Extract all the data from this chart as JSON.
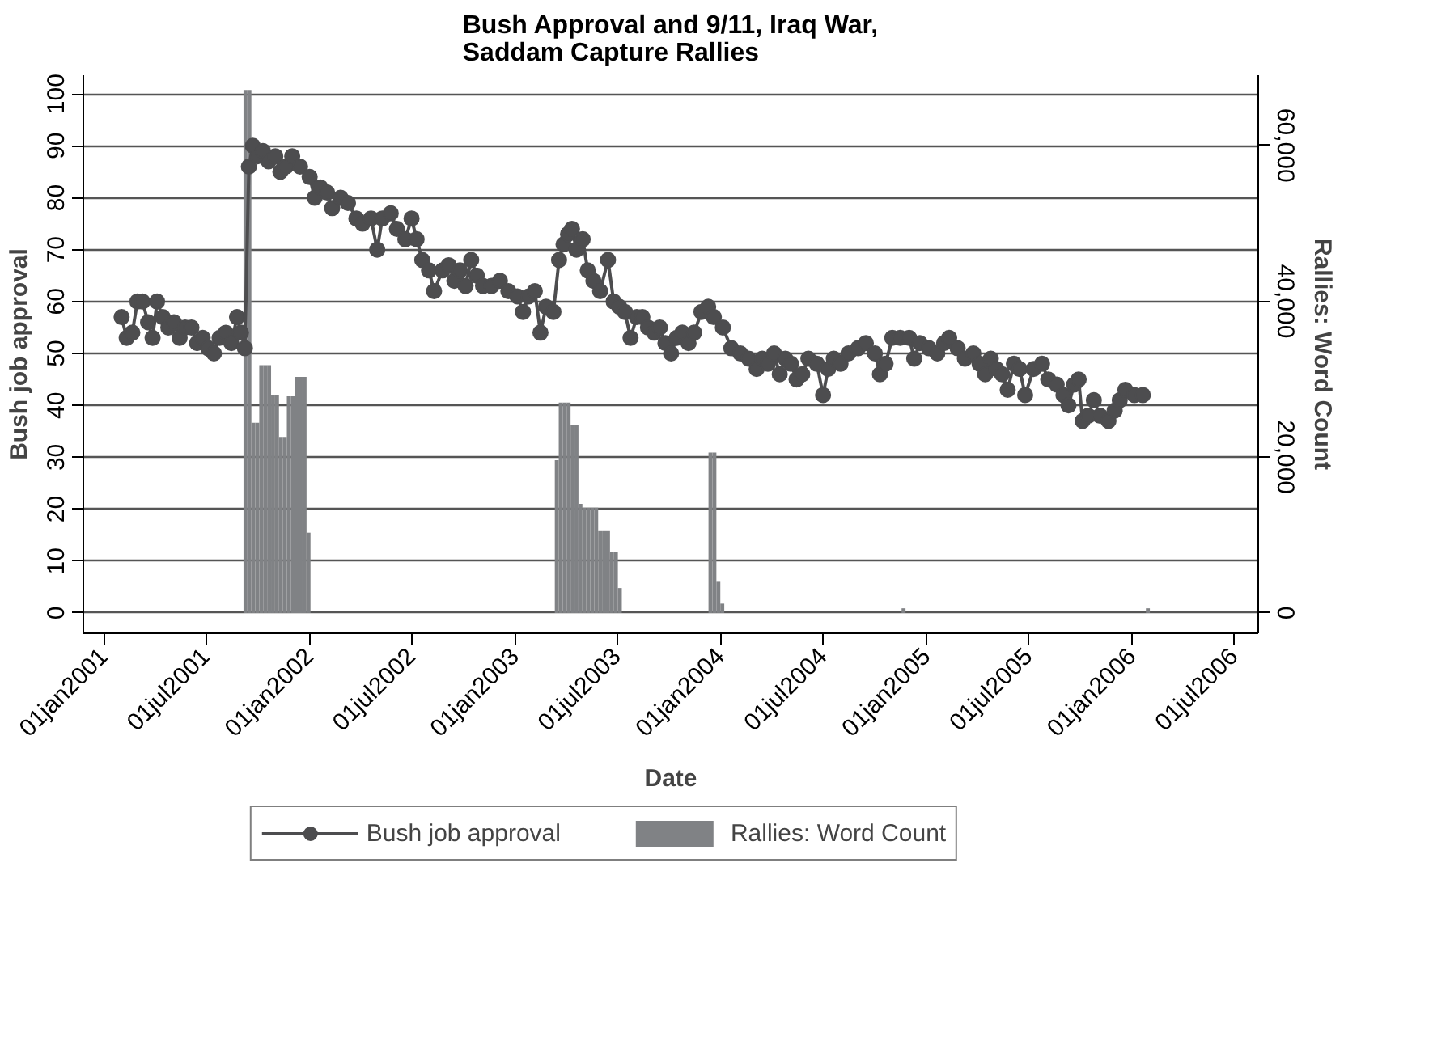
{
  "chart_data": {
    "type": "line",
    "title": "Bush Approval and 9/11, Iraq War,\nSaddam Capture Rallies",
    "xlabel": "Date",
    "ylabel": "Bush job approval",
    "y2label": "Rallies: Word Count",
    "xlim": [
      "2000-11-25",
      "2006-08-13"
    ],
    "xticks": [
      {
        "value": "2001-01-01",
        "label": "01jan2001"
      },
      {
        "value": "2001-07-01",
        "label": "01jul2001"
      },
      {
        "value": "2002-01-01",
        "label": "01jan2002"
      },
      {
        "value": "2002-07-01",
        "label": "01jul2002"
      },
      {
        "value": "2003-01-01",
        "label": "01jan2003"
      },
      {
        "value": "2003-07-01",
        "label": "01jul2003"
      },
      {
        "value": "2004-01-01",
        "label": "01jan2004"
      },
      {
        "value": "2004-07-01",
        "label": "01jul2004"
      },
      {
        "value": "2005-01-01",
        "label": "01jan2005"
      },
      {
        "value": "2005-07-01",
        "label": "01jul2005"
      },
      {
        "value": "2006-01-01",
        "label": "01jan2006"
      },
      {
        "value": "2006-07-01",
        "label": "01jul2006"
      }
    ],
    "ylim": [
      -3.9,
      103.6
    ],
    "yticks": [
      0,
      10,
      20,
      30,
      40,
      50,
      60,
      70,
      80,
      90,
      100
    ],
    "y2lim": [
      -2600,
      69000
    ],
    "y2ticks": [
      0,
      {
        "value": 20000,
        "label": "20,000"
      },
      {
        "value": 40000,
        "label": "40,000"
      },
      {
        "value": 60000,
        "label": "60,000"
      }
    ],
    "grid": "y",
    "legend": "bottom",
    "series": [
      {
        "name": "Rallies: Word Count",
        "type": "bar",
        "axis": "y2",
        "color": "#808285",
        "x": [
          "2001-09-09",
          "2001-09-16",
          "2001-09-23",
          "2001-09-30",
          "2001-10-07",
          "2001-10-14",
          "2001-10-21",
          "2001-10-28",
          "2001-11-04",
          "2001-11-11",
          "2001-11-18",
          "2001-11-25",
          "2001-12-02",
          "2001-12-09",
          "2001-12-16",
          "2001-12-23",
          "2001-12-30",
          "2003-03-16",
          "2003-03-23",
          "2003-03-30",
          "2003-04-06",
          "2003-04-13",
          "2003-04-20",
          "2003-04-27",
          "2003-05-04",
          "2003-05-11",
          "2003-05-18",
          "2003-05-25",
          "2003-06-01",
          "2003-06-08",
          "2003-06-15",
          "2003-06-22",
          "2003-06-29",
          "2003-07-06",
          "2003-12-14",
          "2003-12-21",
          "2003-12-28",
          "2004-01-04",
          "2004-11-21",
          "2006-01-29"
        ],
        "values": [
          67100,
          67100,
          24400,
          24400,
          31800,
          31800,
          31800,
          27900,
          27900,
          22600,
          22600,
          27800,
          27800,
          30300,
          30300,
          30300,
          10300,
          19600,
          27000,
          27000,
          27000,
          24100,
          24100,
          14000,
          13500,
          13500,
          13500,
          13500,
          10600,
          10600,
          10600,
          7800,
          7800,
          3200,
          20600,
          20600,
          4000,
          1200,
          600,
          600
        ]
      },
      {
        "name": "Bush job approval",
        "marker": "circle",
        "color": "#4d4d4f",
        "x": [
          "2001-02-01",
          "2001-02-10",
          "2001-02-20",
          "2001-03-01",
          "2001-03-10",
          "2001-03-20",
          "2001-03-28",
          "2001-04-05",
          "2001-04-15",
          "2001-04-25",
          "2001-05-05",
          "2001-05-15",
          "2001-05-25",
          "2001-06-05",
          "2001-06-15",
          "2001-06-25",
          "2001-07-05",
          "2001-07-15",
          "2001-07-25",
          "2001-08-05",
          "2001-08-15",
          "2001-08-25",
          "2001-09-01",
          "2001-09-08",
          "2001-09-15",
          "2001-09-22",
          "2001-10-01",
          "2001-10-10",
          "2001-10-20",
          "2001-11-01",
          "2001-11-10",
          "2001-11-20",
          "2001-12-01",
          "2001-12-15",
          "2002-01-01",
          "2002-01-10",
          "2002-01-20",
          "2002-02-01",
          "2002-02-10",
          "2002-02-25",
          "2002-03-10",
          "2002-03-25",
          "2002-04-05",
          "2002-04-20",
          "2002-05-01",
          "2002-05-10",
          "2002-05-25",
          "2002-06-05",
          "2002-06-20",
          "2002-07-01",
          "2002-07-10",
          "2002-07-20",
          "2002-08-01",
          "2002-08-10",
          "2002-08-25",
          "2002-09-05",
          "2002-09-15",
          "2002-09-25",
          "2002-10-05",
          "2002-10-15",
          "2002-10-25",
          "2002-11-05",
          "2002-11-20",
          "2002-12-05",
          "2002-12-20",
          "2003-01-05",
          "2003-01-15",
          "2003-01-25",
          "2003-02-05",
          "2003-02-15",
          "2003-02-25",
          "2003-03-10",
          "2003-03-20",
          "2003-03-28",
          "2003-04-05",
          "2003-04-12",
          "2003-04-20",
          "2003-05-01",
          "2003-05-10",
          "2003-05-20",
          "2003-06-01",
          "2003-06-15",
          "2003-06-25",
          "2003-07-05",
          "2003-07-15",
          "2003-07-25",
          "2003-08-05",
          "2003-08-15",
          "2003-08-25",
          "2003-09-05",
          "2003-09-15",
          "2003-09-25",
          "2003-10-05",
          "2003-10-15",
          "2003-10-25",
          "2003-11-05",
          "2003-11-15",
          "2003-11-28",
          "2003-12-10",
          "2003-12-20",
          "2004-01-05",
          "2004-01-20",
          "2004-02-05",
          "2004-02-20",
          "2004-03-05",
          "2004-03-15",
          "2004-03-25",
          "2004-04-05",
          "2004-04-15",
          "2004-04-25",
          "2004-05-05",
          "2004-05-15",
          "2004-05-25",
          "2004-06-05",
          "2004-06-20",
          "2004-07-01",
          "2004-07-10",
          "2004-07-20",
          "2004-08-01",
          "2004-08-15",
          "2004-09-01",
          "2004-09-15",
          "2004-10-01",
          "2004-10-10",
          "2004-10-20",
          "2004-11-01",
          "2004-11-15",
          "2004-12-01",
          "2004-12-10",
          "2004-12-20",
          "2005-01-05",
          "2005-01-20",
          "2005-02-01",
          "2005-02-10",
          "2005-02-25",
          "2005-03-10",
          "2005-03-25",
          "2005-04-05",
          "2005-04-15",
          "2005-04-25",
          "2005-05-05",
          "2005-05-15",
          "2005-05-25",
          "2005-06-05",
          "2005-06-15",
          "2005-06-25",
          "2005-07-10",
          "2005-07-25",
          "2005-08-05",
          "2005-08-20",
          "2005-09-01",
          "2005-09-10",
          "2005-09-20",
          "2005-09-28",
          "2005-10-05",
          "2005-10-15",
          "2005-10-25",
          "2005-11-05",
          "2005-11-20",
          "2005-12-01",
          "2005-12-10",
          "2005-12-20",
          "2006-01-05",
          "2006-01-20"
        ],
        "values": [
          57,
          53,
          54,
          60,
          60,
          56,
          53,
          60,
          57,
          55,
          56,
          53,
          55,
          55,
          52,
          53,
          51,
          50,
          53,
          54,
          52,
          57,
          54,
          51,
          86,
          90,
          88,
          89,
          87,
          88,
          85,
          86,
          88,
          86,
          84,
          80,
          82,
          81,
          78,
          80,
          79,
          76,
          75,
          76,
          70,
          76,
          77,
          74,
          72,
          76,
          72,
          68,
          66,
          62,
          66,
          67,
          64,
          66,
          63,
          68,
          65,
          63,
          63,
          64,
          62,
          61,
          58,
          61,
          62,
          54,
          59,
          58,
          68,
          71,
          73,
          74,
          70,
          72,
          66,
          64,
          62,
          68,
          60,
          59,
          58,
          53,
          57,
          57,
          55,
          54,
          55,
          52,
          50,
          53,
          54,
          52,
          54,
          58,
          59,
          57,
          55,
          51,
          50,
          49,
          47,
          49,
          48,
          50,
          46,
          49,
          48,
          45,
          46,
          49,
          48,
          42,
          47,
          49,
          48,
          50,
          51,
          52,
          50,
          46,
          48,
          53,
          53,
          53,
          49,
          52,
          51,
          50,
          52,
          53,
          51,
          49,
          50,
          48,
          46,
          49,
          47,
          46,
          43,
          48,
          47,
          42,
          47,
          48,
          45,
          44,
          42,
          40,
          44,
          45,
          37,
          38,
          41,
          38,
          37,
          39,
          41,
          43,
          42,
          42
        ]
      }
    ]
  }
}
